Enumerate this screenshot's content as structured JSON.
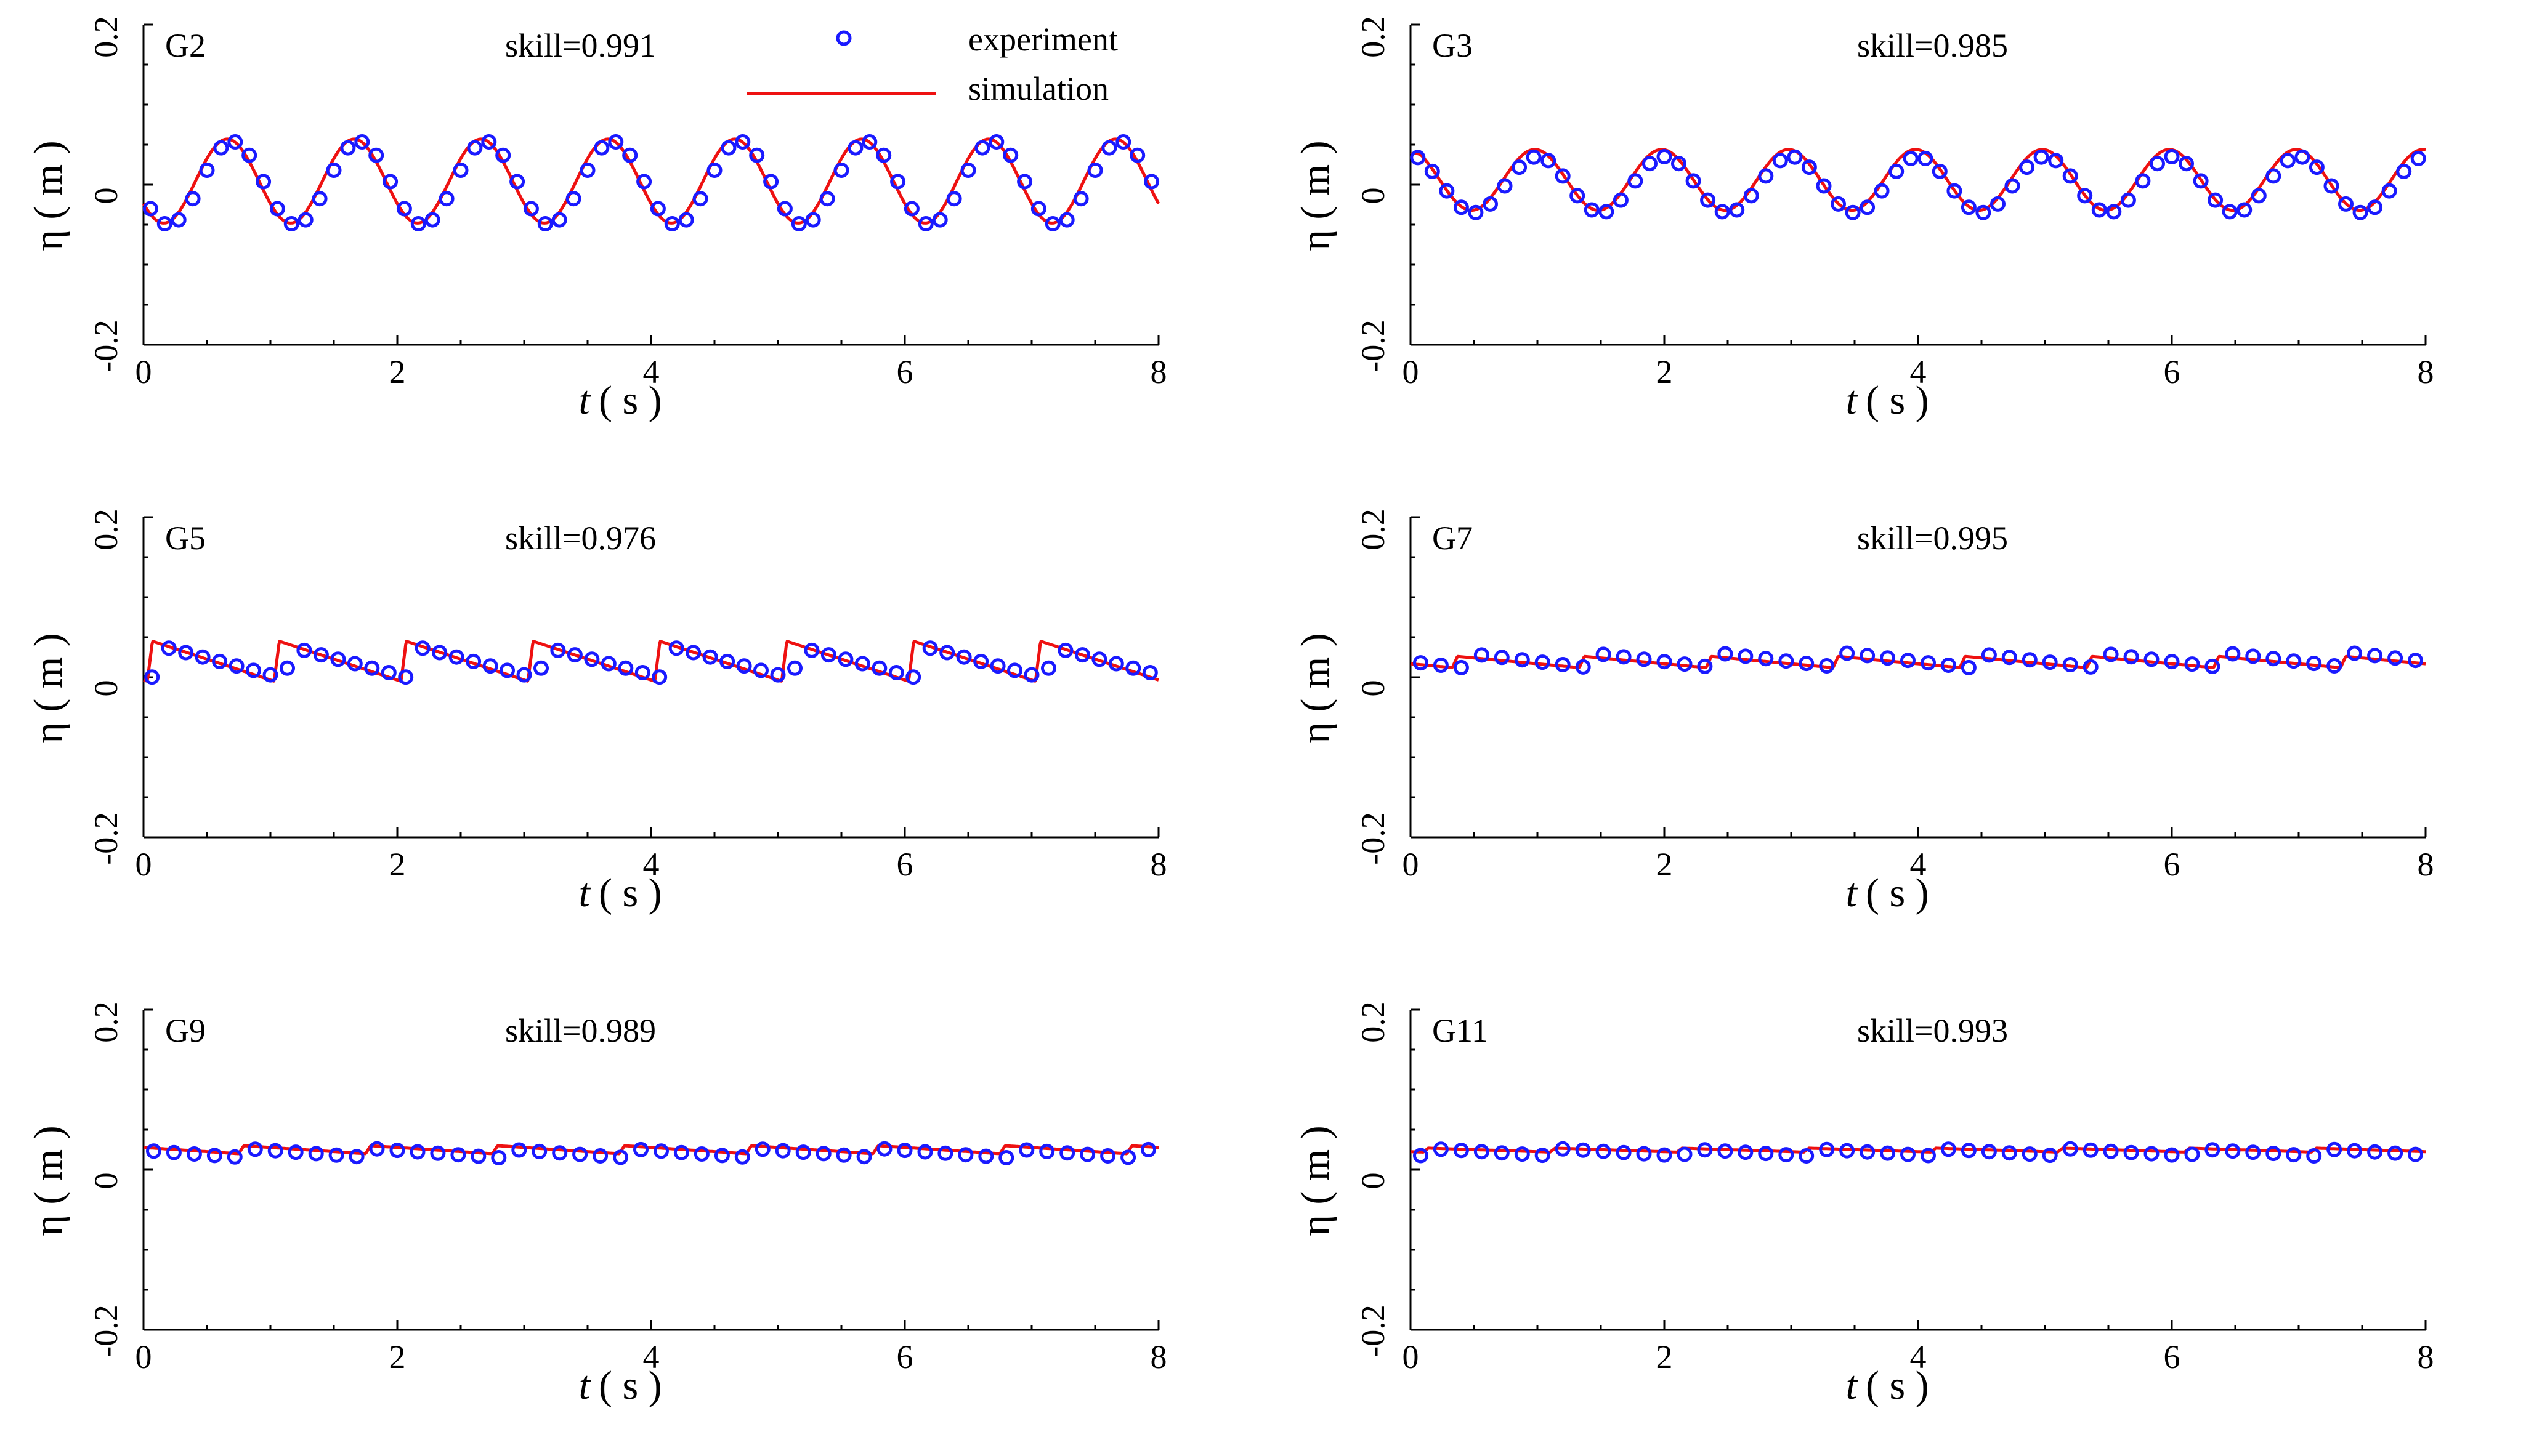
{
  "figure": {
    "legend": {
      "experiment_label": "experiment",
      "simulation_label": "simulation"
    },
    "colors": {
      "experiment": "#1a1aff",
      "simulation": "#ee1111",
      "axis": "#000000"
    }
  },
  "chart_data": [
    {
      "type": "line",
      "gauge": "G2",
      "skill_text": "skill=0.991",
      "xlabel_t": "t",
      "xlabel_rest": "( s )",
      "ylabel": "η ( m )",
      "xlim": [
        0,
        8
      ],
      "ylim": [
        -0.2,
        0.2
      ],
      "xticks": [
        "0",
        "2",
        "4",
        "6",
        "8"
      ],
      "yticks": [
        "0.2",
        "0",
        "-0.2"
      ],
      "series": [
        {
          "name": "simulation",
          "model": "sine",
          "period": 1.0,
          "crest_t": 0.66,
          "crest": 0.057,
          "trough": -0.048,
          "trough_t": 1.16
        },
        {
          "name": "experiment",
          "model": "sine",
          "period": 1.0,
          "crest_t": 0.7,
          "crest": 0.054,
          "trough": -0.05,
          "trough_t": 1.15,
          "n_points": 72
        }
      ]
    },
    {
      "type": "line",
      "gauge": "G3",
      "skill_text": "skill=0.985",
      "xlabel_t": "t",
      "xlabel_rest": "( s )",
      "ylabel": "η ( m )",
      "xlim": [
        0,
        8
      ],
      "ylim": [
        -0.2,
        0.2
      ],
      "xticks": [
        "0",
        "2",
        "4",
        "6",
        "8"
      ],
      "yticks": [
        "0.2",
        "0",
        "-0.2"
      ],
      "series": [
        {
          "name": "simulation",
          "model": "sine",
          "period": 1.0,
          "crest_t": 0.98,
          "crest": 0.044,
          "trough": -0.032,
          "trough_t": 1.45,
          "start": 0.038
        },
        {
          "name": "experiment",
          "model": "sine",
          "period": 1.0,
          "crest_t": 1.0,
          "crest": 0.035,
          "trough": -0.035,
          "trough_t": 1.45,
          "start": 0.035,
          "n_points": 70
        }
      ]
    },
    {
      "type": "line",
      "gauge": "G5",
      "skill_text": "skill=0.976",
      "xlabel_t": "t",
      "xlabel_rest": "( s )",
      "ylabel": "η ( m )",
      "xlim": [
        0,
        8
      ],
      "ylim": [
        -0.2,
        0.2
      ],
      "xticks": [
        "0",
        "2",
        "4",
        "6",
        "8"
      ],
      "yticks": [
        "0.2",
        "0",
        "-0.2"
      ],
      "series": [
        {
          "name": "simulation",
          "model": "sawtooth",
          "period": 1.0,
          "jump_t": 0.03,
          "crest": 0.045,
          "trough": -0.005
        },
        {
          "name": "experiment",
          "model": "sawtooth",
          "period": 1.0,
          "jump_t": 0.12,
          "crest": 0.038,
          "trough": -0.002,
          "n_points": 60
        }
      ]
    },
    {
      "type": "line",
      "gauge": "G7",
      "skill_text": "skill=0.995",
      "xlabel_t": "t",
      "xlabel_rest": "( s )",
      "ylabel": "η ( m )",
      "xlim": [
        0,
        8
      ],
      "ylim": [
        -0.2,
        0.2
      ],
      "xticks": [
        "0",
        "2",
        "4",
        "6",
        "8"
      ],
      "yticks": [
        "0.2",
        "0",
        "-0.2"
      ],
      "series": [
        {
          "name": "simulation",
          "model": "sawtooth",
          "period": 1.0,
          "jump_t": 0.33,
          "crest": 0.026,
          "trough": 0.012
        },
        {
          "name": "experiment",
          "model": "sawtooth",
          "period": 1.0,
          "jump_t": 0.4,
          "crest": 0.03,
          "trough": 0.012,
          "n_points": 50
        }
      ]
    },
    {
      "type": "line",
      "gauge": "G9",
      "skill_text": "skill=0.989",
      "xlabel_t": "t",
      "xlabel_rest": "( s )",
      "ylabel": "η ( m )",
      "xlim": [
        0,
        8
      ],
      "ylim": [
        -0.2,
        0.2
      ],
      "xticks": [
        "0",
        "2",
        "4",
        "6",
        "8"
      ],
      "yticks": [
        "0.2",
        "0",
        "-0.2"
      ],
      "series": [
        {
          "name": "simulation",
          "model": "sawtooth",
          "period": 1.0,
          "jump_t": 0.75,
          "crest": 0.03,
          "trough": 0.02
        },
        {
          "name": "experiment",
          "model": "sawtooth",
          "period": 1.0,
          "jump_t": 0.8,
          "crest": 0.026,
          "trough": 0.015,
          "n_points": 50
        }
      ]
    },
    {
      "type": "line",
      "gauge": "G11",
      "skill_text": "skill=0.993",
      "xlabel_t": "t",
      "xlabel_rest": "( s )",
      "ylabel": "η ( m )",
      "xlim": [
        0,
        8
      ],
      "ylim": [
        -0.2,
        0.2
      ],
      "xticks": [
        "0",
        "2",
        "4",
        "6",
        "8"
      ],
      "yticks": [
        "0.2",
        "0",
        "-0.2"
      ],
      "series": [
        {
          "name": "simulation",
          "model": "sawtooth",
          "period": 1.0,
          "jump_t": 0.1,
          "crest": 0.027,
          "trough": 0.022
        },
        {
          "name": "experiment",
          "model": "sawtooth",
          "period": 1.0,
          "jump_t": 0.15,
          "crest": 0.026,
          "trough": 0.017,
          "n_points": 50
        }
      ]
    }
  ]
}
